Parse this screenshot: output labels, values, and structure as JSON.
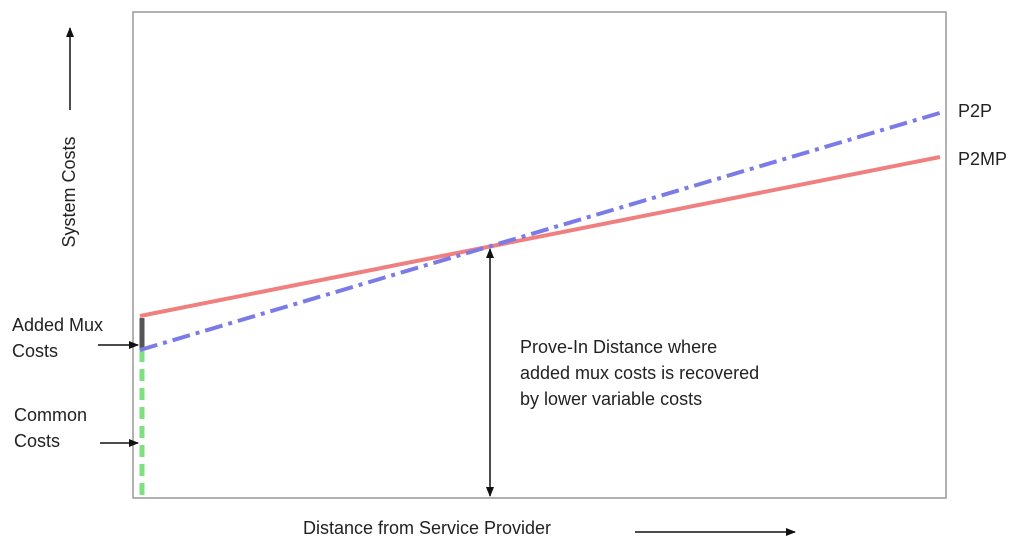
{
  "y_axis_label": "System Costs",
  "x_axis_label": "Distance from Service Provider",
  "lines": [
    {
      "label": "P2P"
    },
    {
      "label": "P2MP"
    }
  ],
  "annotations": {
    "added_mux": [
      "Added Mux",
      "Costs"
    ],
    "common": [
      "Common",
      "Costs"
    ],
    "prove_in": [
      "Prove-In Distance where",
      "added mux costs is recovered",
      "by lower variable costs"
    ]
  }
}
